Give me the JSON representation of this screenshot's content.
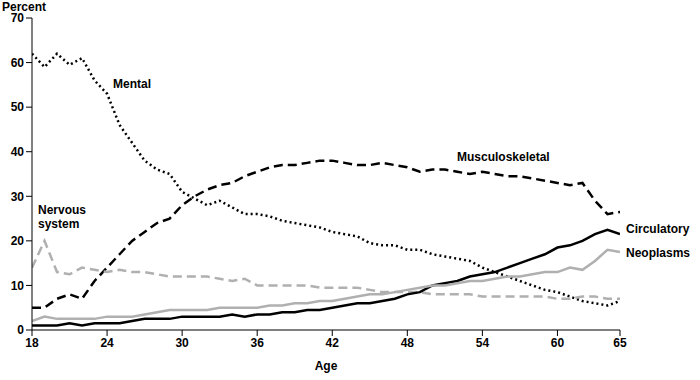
{
  "chart_data": {
    "type": "line",
    "x_label": "Age",
    "y_label": "Percent",
    "x": [
      18,
      19,
      20,
      21,
      22,
      23,
      24,
      25,
      26,
      27,
      28,
      29,
      30,
      31,
      32,
      33,
      34,
      35,
      36,
      37,
      38,
      39,
      40,
      41,
      42,
      43,
      44,
      45,
      46,
      47,
      48,
      49,
      50,
      51,
      52,
      53,
      54,
      55,
      56,
      57,
      58,
      59,
      60,
      61,
      62,
      63,
      64,
      65
    ],
    "xlim": [
      18,
      65
    ],
    "xticks": [
      18,
      24,
      30,
      36,
      42,
      48,
      54,
      60,
      65
    ],
    "ylim": [
      0,
      70
    ],
    "yticks": [
      0,
      10,
      20,
      30,
      40,
      50,
      60,
      70
    ],
    "grid": false,
    "series": [
      {
        "name": "Mental",
        "color": "#000000",
        "line_style": "dotted",
        "values": [
          62,
          59,
          62,
          59.5,
          61,
          56,
          53,
          46,
          42,
          38,
          36,
          35,
          31,
          29.5,
          28,
          29,
          27.5,
          26,
          26,
          25.5,
          24.5,
          24,
          23.5,
          23,
          22,
          21.5,
          21,
          19.5,
          19,
          19,
          18,
          18,
          17,
          16.5,
          16,
          15.5,
          14,
          13,
          12,
          11,
          10,
          9,
          8.5,
          7.5,
          6.5,
          6,
          5.5,
          6.5
        ]
      },
      {
        "name": "Musculoskeletal",
        "color": "#000000",
        "line_style": "dashed",
        "values": [
          5,
          5,
          7,
          8,
          7,
          11,
          14,
          17,
          20,
          22,
          24,
          25,
          28,
          30,
          31.5,
          32.5,
          33,
          34.5,
          35.5,
          36.5,
          37,
          37,
          37.5,
          38,
          38,
          37.5,
          37,
          37,
          37.5,
          37,
          36.5,
          35.5,
          36,
          36,
          35.5,
          35,
          35.5,
          35,
          34.5,
          34.5,
          34,
          33.5,
          33,
          32.5,
          33,
          29,
          26,
          26.5
        ]
      },
      {
        "name": "Nervous system",
        "color": "#b0b0b0",
        "line_style": "dashed",
        "values": [
          14,
          20,
          13,
          12.5,
          14,
          13.5,
          13,
          13.5,
          13,
          13,
          12.5,
          12,
          12,
          12,
          12,
          11.5,
          11,
          11.5,
          10,
          10,
          10,
          10,
          10,
          9.5,
          9.5,
          9.5,
          9.5,
          9,
          8.5,
          8.5,
          8.5,
          8.5,
          8,
          8,
          8,
          8,
          7.5,
          7.5,
          7.5,
          7.5,
          7.5,
          7.5,
          7,
          7,
          7.5,
          7.5,
          7,
          7
        ]
      },
      {
        "name": "Circulatory",
        "color": "#000000",
        "line_style": "solid",
        "values": [
          1,
          1,
          1,
          1.5,
          1,
          1.5,
          1.5,
          1.5,
          2,
          2.5,
          2.5,
          2.5,
          3,
          3,
          3,
          3,
          3.5,
          3,
          3.5,
          3.5,
          4,
          4,
          4.5,
          4.5,
          5,
          5.5,
          6,
          6,
          6.5,
          7,
          8,
          8.5,
          10,
          10.5,
          11,
          12,
          12.5,
          13,
          14,
          15,
          16,
          17,
          18.5,
          19,
          20,
          21.5,
          22.5,
          21.5
        ]
      },
      {
        "name": "Neoplasms",
        "color": "#b0b0b0",
        "line_style": "solid",
        "values": [
          2,
          3,
          2.5,
          2.5,
          2.5,
          2.5,
          3,
          3,
          3,
          3.5,
          4,
          4.5,
          4.5,
          4.5,
          4.5,
          5,
          5,
          5,
          5,
          5.5,
          5.5,
          6,
          6,
          6.5,
          6.5,
          7,
          7.5,
          8,
          8,
          8.5,
          9,
          9.5,
          10,
          10,
          10.5,
          11,
          11,
          11.5,
          12,
          12,
          12.5,
          13,
          13,
          14,
          13.5,
          15.5,
          18,
          17.5
        ]
      }
    ]
  }
}
